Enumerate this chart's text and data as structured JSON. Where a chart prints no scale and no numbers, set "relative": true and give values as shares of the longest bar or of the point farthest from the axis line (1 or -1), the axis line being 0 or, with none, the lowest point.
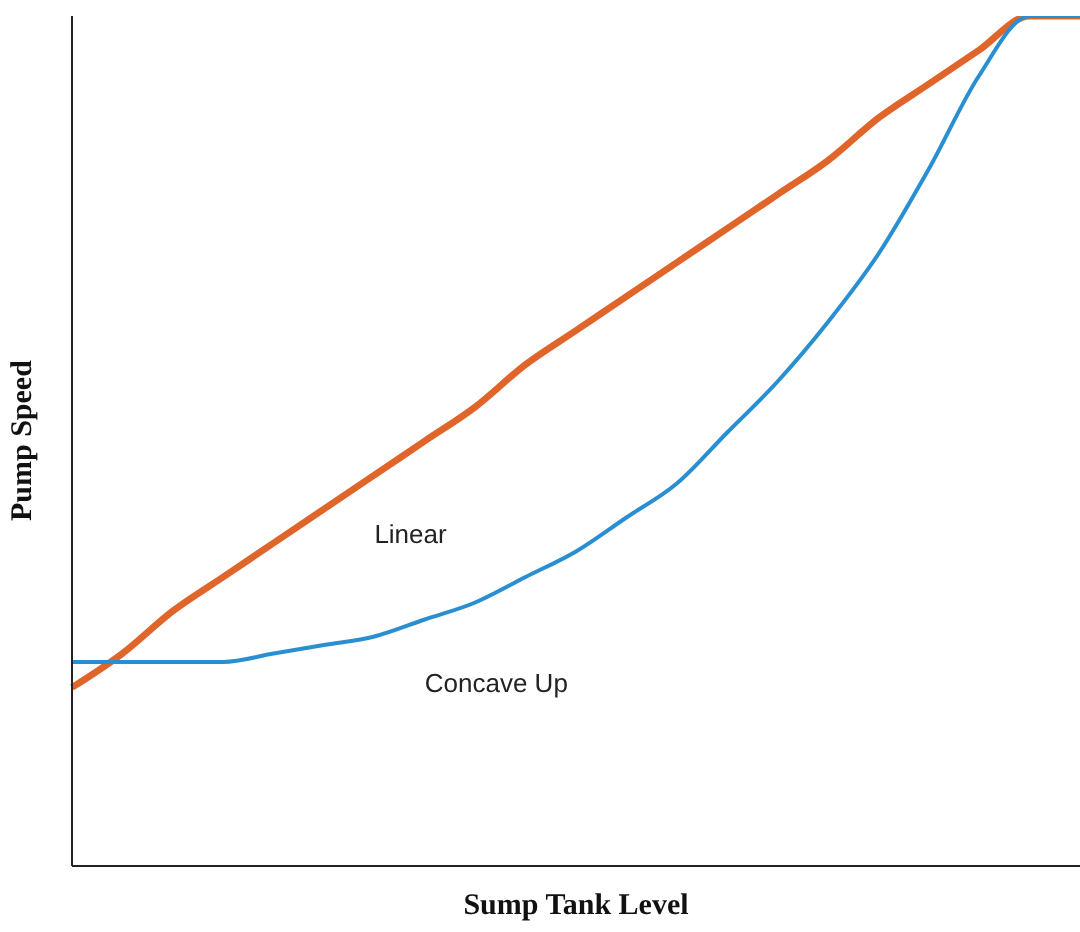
{
  "chart_data": {
    "type": "line",
    "xlabel": "Sump Tank Level",
    "ylabel": "Pump Speed",
    "relative": true,
    "categories": [
      null,
      null,
      null,
      null,
      null,
      null,
      null,
      null,
      null,
      null,
      null,
      null,
      null,
      null,
      null,
      null,
      null,
      null,
      null,
      null,
      null
    ],
    "series": [
      {
        "name": "Linear",
        "color": "#e0652b",
        "values": [
          0.21,
          0.25,
          0.3,
          0.34,
          0.38,
          0.42,
          0.46,
          0.5,
          0.54,
          0.59,
          0.63,
          0.67,
          0.71,
          0.75,
          0.79,
          0.83,
          0.88,
          0.92,
          0.96,
          1,
          1
        ]
      },
      {
        "name": "Concave Up",
        "color": "#2a8fd0",
        "values": [
          0.24,
          0.24,
          0.24,
          0.24,
          0.25,
          0.26,
          0.27,
          0.29,
          0.31,
          0.34,
          0.37,
          0.41,
          0.45,
          0.51,
          0.57,
          0.64,
          0.72,
          0.82,
          0.93,
          1,
          1
        ]
      }
    ]
  }
}
